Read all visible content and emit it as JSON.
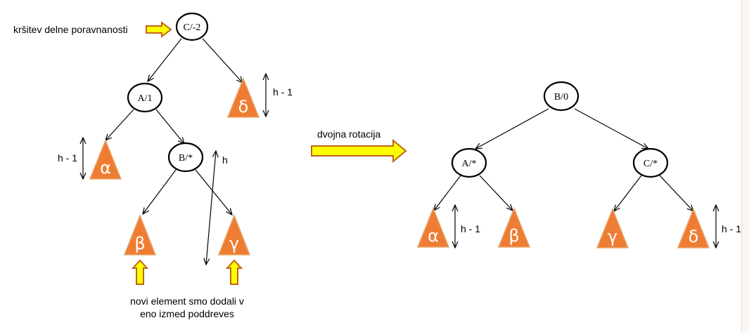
{
  "left_tree": {
    "nodes": {
      "root": "C/-2",
      "left": "A/1",
      "inner": "B/*"
    },
    "subtrees": {
      "alpha": "α",
      "beta": "β",
      "gamma": "γ",
      "delta": "δ"
    },
    "height_labels": {
      "delta": "h - 1",
      "alpha": "h - 1",
      "inner": "h"
    }
  },
  "right_tree": {
    "nodes": {
      "root": "B/0",
      "left": "A/*",
      "right": "C/*"
    },
    "subtrees": {
      "alpha": "α",
      "beta": "β",
      "gamma": "γ",
      "delta": "δ"
    },
    "height_labels": {
      "alpha": "h - 1",
      "delta": "h - 1"
    }
  },
  "annotations": {
    "violation": "kršitev delne poravnanosti",
    "rotation": "dvojna rotacija",
    "inserted_line1": "novi element smo dodali v",
    "inserted_line2": "eno izmed poddreves"
  }
}
